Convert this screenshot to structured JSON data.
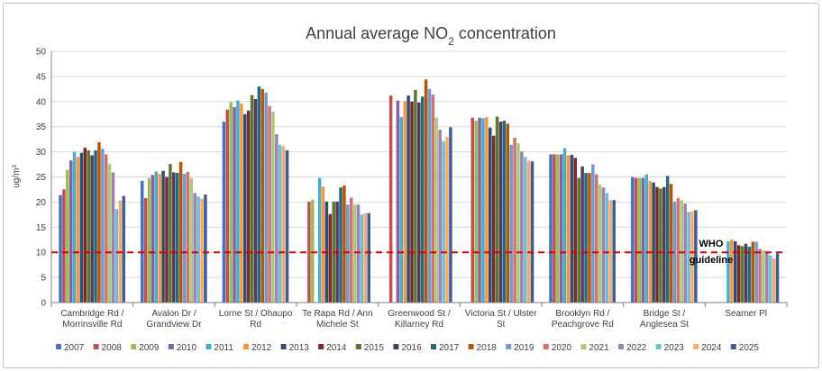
{
  "chart_data": {
    "type": "bar",
    "title": "Annual average NO",
    "title_sub": "2",
    "title_tail": " concentration",
    "ylabel": "ug/m³",
    "ylim": [
      0,
      50
    ],
    "yticks": [
      "0",
      "5",
      "10",
      "15",
      "20",
      "25",
      "30",
      "35",
      "40",
      "45",
      "50"
    ],
    "grid": true,
    "legend_position": "bottom",
    "guideline": {
      "value": 10,
      "label_line1": "WHO",
      "label_line2": "guideline",
      "color": "#e00000"
    },
    "categories": [
      [
        "Cambridge Rd /",
        "Morrinsville Rd"
      ],
      [
        "Avalon Dr /",
        "Grandview Dr"
      ],
      [
        "Lorne St / Ohaupo",
        "Rd"
      ],
      [
        "Te Rapa Rd / Ann",
        "Michele St"
      ],
      [
        "Greenwood St /",
        "Killarney Rd"
      ],
      [
        "Victoria St / Ulster",
        "St"
      ],
      [
        "Brooklyn Rd /",
        "Peachgrove Rd"
      ],
      [
        "Bridge St /",
        "Anglesea St"
      ],
      [
        "Seamer Pl"
      ]
    ],
    "series": [
      {
        "name": "2007",
        "color": "#4472c4",
        "values": [
          21.4,
          24.2,
          36.0,
          null,
          null,
          null,
          29.5,
          25.0,
          null
        ]
      },
      {
        "name": "2008",
        "color": "#c0504d",
        "values": [
          22.5,
          20.8,
          38.4,
          20.1,
          41.2,
          36.8,
          29.5,
          24.8,
          null
        ]
      },
      {
        "name": "2009",
        "color": "#9bbb59",
        "values": [
          26.4,
          24.8,
          39.9,
          20.5,
          null,
          36.2,
          29.5,
          24.8,
          null
        ]
      },
      {
        "name": "2010",
        "color": "#8064a2",
        "values": [
          28.3,
          25.4,
          38.9,
          null,
          40.2,
          36.8,
          29.5,
          24.8,
          null
        ]
      },
      {
        "name": "2011",
        "color": "#4bacc6",
        "values": [
          30.0,
          26.1,
          40.2,
          24.8,
          36.9,
          36.7,
          30.7,
          25.5,
          12.2
        ]
      },
      {
        "name": "2012",
        "color": "#f79646",
        "values": [
          29.0,
          25.6,
          39.6,
          23.1,
          40.1,
          36.9,
          29.3,
          24.2,
          12.5
        ]
      },
      {
        "name": "2013",
        "color": "#2c4d75",
        "values": [
          29.8,
          26.2,
          37.5,
          20.1,
          41.2,
          34.8,
          29.4,
          23.9,
          12.2
        ]
      },
      {
        "name": "2014",
        "color": "#772c2a",
        "values": [
          30.8,
          25.0,
          38.2,
          17.6,
          40.0,
          33.2,
          28.8,
          23.0,
          11.4
        ]
      },
      {
        "name": "2015",
        "color": "#5f7530",
        "values": [
          30.3,
          27.6,
          41.3,
          20.1,
          42.3,
          37.0,
          24.8,
          22.7,
          11.2
        ]
      },
      {
        "name": "2016",
        "color": "#4d3b62",
        "values": [
          29.3,
          25.9,
          40.5,
          20.1,
          39.8,
          36.0,
          27.1,
          23.0,
          11.7
        ]
      },
      {
        "name": "2017",
        "color": "#276a7c",
        "values": [
          30.3,
          25.8,
          43.0,
          22.9,
          41.0,
          36.2,
          25.8,
          25.2,
          11.1
        ]
      },
      {
        "name": "2018",
        "color": "#b65708",
        "values": [
          31.9,
          28.0,
          42.5,
          23.3,
          44.4,
          35.6,
          25.8,
          23.6,
          12.1
        ]
      },
      {
        "name": "2019",
        "color": "#729aca",
        "values": [
          30.6,
          25.6,
          41.8,
          19.5,
          42.5,
          31.4,
          27.5,
          20.1,
          12.1
        ]
      },
      {
        "name": "2020",
        "color": "#cd7371",
        "values": [
          29.5,
          26.0,
          39.1,
          20.9,
          41.4,
          32.8,
          25.5,
          20.8,
          10.7
        ]
      },
      {
        "name": "2021",
        "color": "#afc97a",
        "values": [
          27.6,
          24.8,
          38.0,
          19.5,
          36.8,
          31.7,
          23.5,
          20.4,
          10.4
        ]
      },
      {
        "name": "2022",
        "color": "#9983b5",
        "values": [
          25.9,
          21.8,
          33.5,
          19.5,
          34.4,
          30.1,
          22.9,
          19.7,
          10.1
        ]
      },
      {
        "name": "2023",
        "color": "#6fbdd1",
        "values": [
          18.6,
          21.1,
          31.4,
          17.5,
          32.1,
          29.0,
          21.8,
          18.0,
          9.4
        ]
      },
      {
        "name": "2024",
        "color": "#f9ab6b",
        "values": [
          20.3,
          20.7,
          31.1,
          17.8,
          33.0,
          28.2,
          20.4,
          18.2,
          8.8
        ]
      },
      {
        "name": "2025",
        "color": "#3a5f92",
        "values": [
          21.2,
          21.5,
          30.3,
          17.8,
          34.9,
          28.1,
          20.4,
          18.4,
          9.8
        ]
      }
    ]
  }
}
